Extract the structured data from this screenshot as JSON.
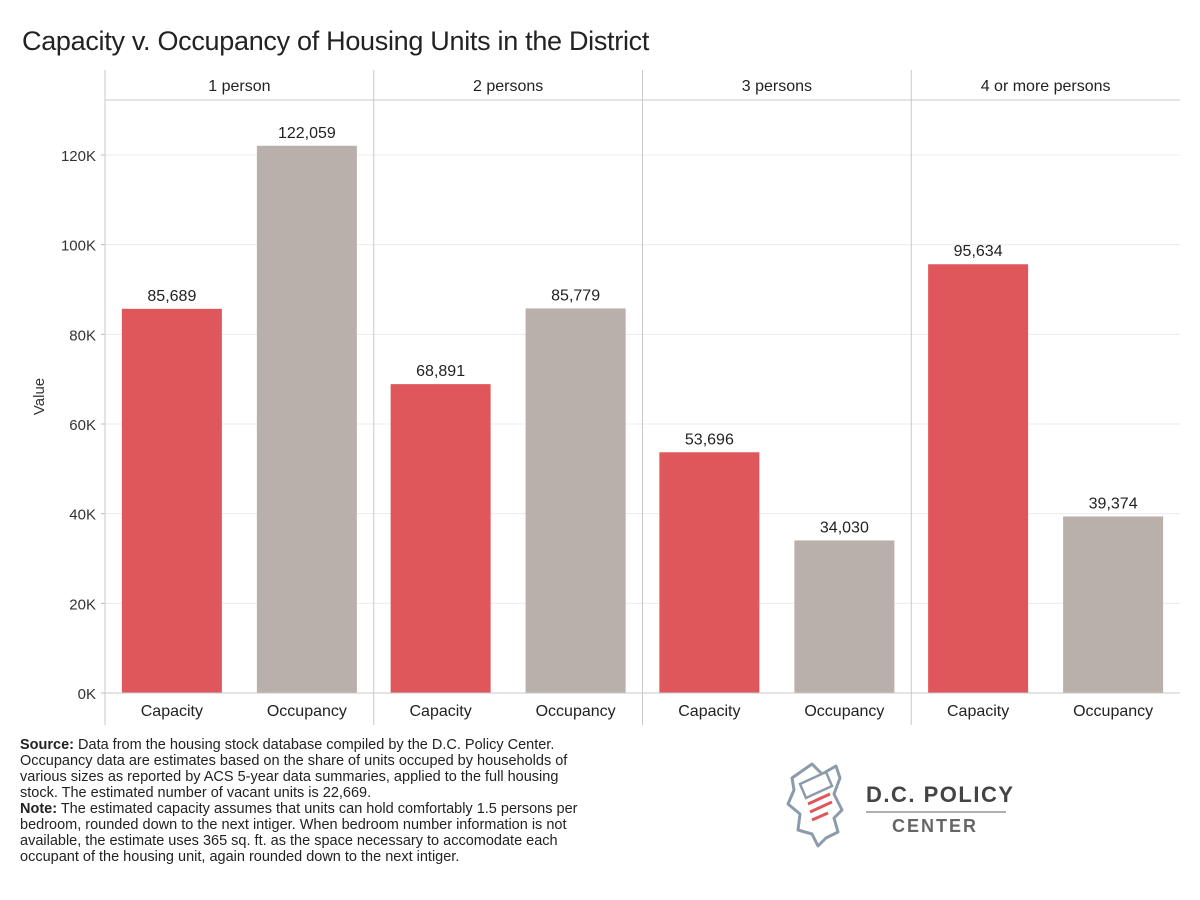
{
  "chart_data": {
    "type": "bar",
    "title": "Capacity v. Occupancy of Housing Units in the District",
    "ylabel": "Value",
    "ylim": [
      0,
      130000
    ],
    "yticks": [
      0,
      20000,
      40000,
      60000,
      80000,
      100000,
      120000
    ],
    "ytick_labels": [
      "0K",
      "20K",
      "40K",
      "60K",
      "80K",
      "100K",
      "120K"
    ],
    "grid": true,
    "panels": [
      {
        "label": "1 person",
        "categories": [
          "Capacity",
          "Occupancy"
        ],
        "values": [
          85689,
          122059
        ],
        "value_labels": [
          "85,689",
          "122,059"
        ]
      },
      {
        "label": "2 persons",
        "categories": [
          "Capacity",
          "Occupancy"
        ],
        "values": [
          68891,
          85779
        ],
        "value_labels": [
          "68,891",
          "85,779"
        ]
      },
      {
        "label": "3 persons",
        "categories": [
          "Capacity",
          "Occupancy"
        ],
        "values": [
          53696,
          34030
        ],
        "value_labels": [
          "53,696",
          "34,030"
        ]
      },
      {
        "label": "4 or more persons",
        "categories": [
          "Capacity",
          "Occupancy"
        ],
        "values": [
          95634,
          39374
        ],
        "value_labels": [
          "95,634",
          "39,374"
        ]
      }
    ],
    "colors": {
      "Capacity": "#e0575b",
      "Occupancy": "#b9afab"
    }
  },
  "notes": {
    "source_label": "Source:",
    "source_text": " Data from the housing stock database compiled by the D.C. Policy Center. Occupancy data are estimates based on the share of units occuped by households of various sizes as reported by ACS 5-year data summaries, applied to the full housing stock. The estimated number of vacant units is 22,669.",
    "note_label": "Note:",
    "note_text": " The estimated capacity assumes that units can hold comfortably 1.5 persons per bedroom, rounded down to the next intiger. When bedroom number information is not available, the estimate uses 365 sq. ft. as the space necessary to accomodate each occupant of the housing unit, again rounded down to the next intiger."
  },
  "logo": {
    "org_line1": "D.C. POLICY",
    "org_line2": "CENTER",
    "icon": "dc-map-document-icon",
    "accent": "#e0575b"
  }
}
